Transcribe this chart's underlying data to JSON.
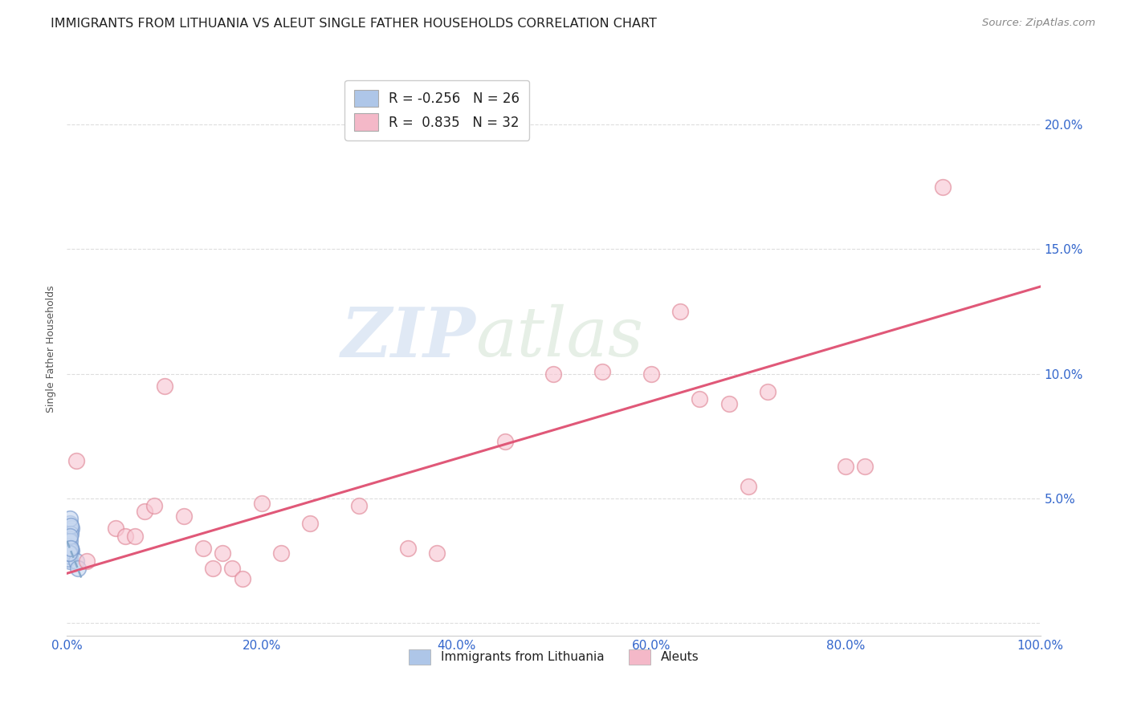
{
  "title": "IMMIGRANTS FROM LITHUANIA VS ALEUT SINGLE FATHER HOUSEHOLDS CORRELATION CHART",
  "source": "Source: ZipAtlas.com",
  "ylabel": "Single Father Households",
  "xlim": [
    0,
    1.0
  ],
  "ylim": [
    -0.005,
    0.225
  ],
  "watermark_zip": "ZIP",
  "watermark_atlas": "atlas",
  "background_color": "#ffffff",
  "grid_color": "#dddddd",
  "blue_scatter_x": [
    0.002,
    0.003,
    0.004,
    0.002,
    0.005,
    0.003,
    0.004,
    0.002,
    0.001,
    0.003,
    0.004,
    0.002,
    0.005,
    0.003,
    0.002,
    0.004,
    0.003,
    0.001,
    0.003,
    0.004,
    0.003,
    0.003,
    0.01,
    0.011,
    0.002,
    0.004
  ],
  "blue_scatter_y": [
    0.035,
    0.04,
    0.037,
    0.032,
    0.038,
    0.042,
    0.03,
    0.028,
    0.033,
    0.025,
    0.036,
    0.031,
    0.029,
    0.027,
    0.034,
    0.039,
    0.033,
    0.026,
    0.03,
    0.029,
    0.035,
    0.028,
    0.025,
    0.022,
    0.028,
    0.03
  ],
  "pink_scatter_x": [
    0.01,
    0.02,
    0.05,
    0.06,
    0.07,
    0.08,
    0.09,
    0.1,
    0.12,
    0.14,
    0.15,
    0.16,
    0.17,
    0.18,
    0.2,
    0.22,
    0.25,
    0.3,
    0.35,
    0.38,
    0.45,
    0.5,
    0.55,
    0.6,
    0.63,
    0.65,
    0.68,
    0.7,
    0.72,
    0.8,
    0.82,
    0.9
  ],
  "pink_scatter_y": [
    0.065,
    0.025,
    0.038,
    0.035,
    0.035,
    0.045,
    0.047,
    0.095,
    0.043,
    0.03,
    0.022,
    0.028,
    0.022,
    0.018,
    0.048,
    0.028,
    0.04,
    0.047,
    0.03,
    0.028,
    0.073,
    0.1,
    0.101,
    0.1,
    0.125,
    0.09,
    0.088,
    0.055,
    0.093,
    0.063,
    0.063,
    0.175
  ],
  "pink_line_x": [
    0.0,
    1.0
  ],
  "pink_line_y": [
    0.02,
    0.135
  ],
  "blue_line_x": [
    0.0,
    0.015
  ],
  "blue_line_y": [
    0.033,
    0.018
  ],
  "legend_entries": [
    {
      "label": "R = -0.256",
      "n_label": "N = 26",
      "color": "#aec6e8"
    },
    {
      "label": "R =  0.835",
      "n_label": "N = 32",
      "color": "#f4b8c8"
    }
  ],
  "legend_bottom": [
    "Immigrants from Lithuania",
    "Aleuts"
  ],
  "legend_bottom_colors": [
    "#aec6e8",
    "#f4b8c8"
  ],
  "title_fontsize": 11.5,
  "source_fontsize": 9.5,
  "axis_label_fontsize": 9,
  "tick_fontsize": 11,
  "scatter_size": 200,
  "title_color": "#222222",
  "axis_tick_color": "#3366cc",
  "ylabel_color": "#555555"
}
